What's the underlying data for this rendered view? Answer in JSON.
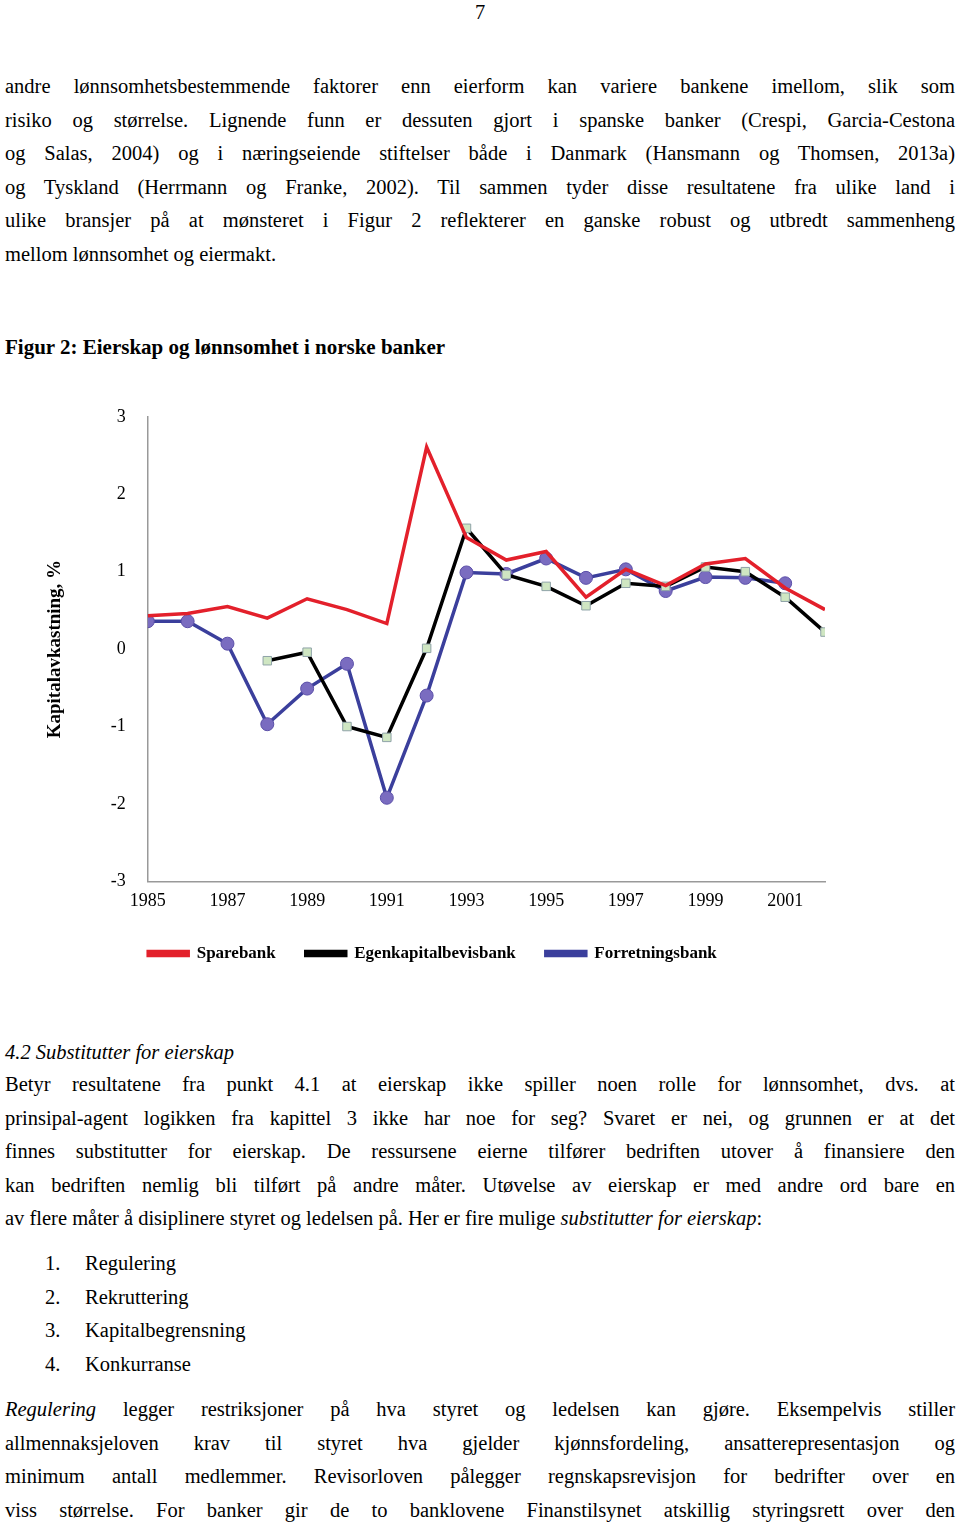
{
  "page_number": "7",
  "paragraphs_top": [
    {
      "lines": [
        [
          "andre lønnsomhetsbestemmende faktorer enn eierform kan variere bankene imellom, slik som"
        ],
        [
          "risiko og størrelse. Lignende funn er dessuten gjort i spanske banker (Crespi, Garcia-Cestona"
        ],
        [
          "og Salas, 2004) og i næringseiende stiftelser både i Danmark (Hansmann og Thomsen, 2013a)"
        ],
        [
          "og Tyskland (Herrmann og Franke, 2002). Til sammen tyder disse resultatene fra ulike land i"
        ],
        [
          "ulike bransjer på at mønsteret i Figur 2 reflekterer en ganske robust og utbredt sammenheng"
        ],
        [
          "mellom lønnsomhet og eiermakt."
        ]
      ],
      "ends": true
    }
  ],
  "chart_data": {
    "type": "line",
    "title": "Figur 2: Eierskap og lønnsomhet i norske banker",
    "y_label": "Kapitalavkastning, %",
    "categories": [
      "1985",
      null,
      "1987",
      null,
      "1989",
      null,
      "1991",
      null,
      "1993",
      null,
      "1995",
      null,
      "1997",
      null,
      "1999",
      null,
      "2001",
      null
    ],
    "series": [
      {
        "name": "Sparebank",
        "color": "#e3202b",
        "marker": "none",
        "values": [
          0.43,
          0.46,
          0.55,
          0.4,
          0.65,
          0.51,
          0.33,
          2.61,
          1.44,
          1.15,
          1.26,
          0.67,
          1.03,
          0.82,
          1.1,
          1.17,
          0.79,
          0.51
        ]
      },
      {
        "name": "Egenkapitalbevisbank",
        "color": "#000000",
        "marker": "square",
        "values": [
          null,
          null,
          null,
          -0.15,
          -0.04,
          -1.0,
          -1.14,
          0.01,
          1.56,
          0.96,
          0.81,
          0.56,
          0.85,
          0.81,
          1.06,
          1.0,
          0.67,
          0.22
        ]
      },
      {
        "name": "Forretningsbank",
        "color": "#3b3f9c",
        "marker": "circle",
        "values": [
          0.36,
          0.36,
          0.07,
          -0.97,
          -0.51,
          -0.19,
          -1.92,
          -0.6,
          0.99,
          0.97,
          1.17,
          0.92,
          1.03,
          0.75,
          0.93,
          0.92,
          0.85,
          null
        ]
      }
    ],
    "ylim": [
      -3,
      3
    ],
    "yticks": [
      -3,
      -2,
      -1,
      0,
      1,
      2,
      3
    ],
    "grid": false,
    "legend": "bottom"
  },
  "heading": "4.2 Substitutter for eierskap",
  "paragraph_2": {
    "lines": [
      [
        "Betyr resultatene fra punkt 4.1 at eierskap ikke spiller noen rolle for lønnsomhet, dvs. at"
      ],
      [
        "prinsipal-agent logikken fra kapittel 3 ikke har noe for seg? Svaret er nei, og grunnen er at det"
      ],
      [
        "finnes substitutter for eierskap. De ressursene eierne tilfører bedriften utover å finansiere den"
      ],
      [
        "kan bedriften nemlig bli tilført på andre måter. Utøvelse av eierskap er med andre ord bare en"
      ],
      [
        "av flere måter å disiplinere styret og ledelsen på. Her er fire mulige ",
        {
          "text": "substitutter for eierskap",
          "italic": true
        },
        ":"
      ]
    ]
  },
  "list": [
    {
      "number": "1.",
      "text": "Regulering"
    },
    {
      "number": "2.",
      "text": "Rekruttering"
    },
    {
      "number": "3.",
      "text": "Kapitalbegrensning"
    },
    {
      "number": "4.",
      "text": "Konkurranse"
    }
  ],
  "paragraph_3": {
    "lines": [
      [
        {
          "text": "Regulering",
          "italic": true
        },
        " legger restriksjoner på hva styret og ledelsen kan gjøre. Eksempelvis stiller"
      ],
      [
        "allmennaksjeloven krav til styret hva gjelder kjønnsfordeling, ansatterepresentasjon og"
      ],
      [
        "minimum antall medlemmer. Revisorloven pålegger regnskapsrevisjon for bedrifter over en"
      ],
      [
        "viss størrelse. For banker gir de to banklovene Finanstilsynet atskillig styringsrett over den"
      ]
    ]
  }
}
